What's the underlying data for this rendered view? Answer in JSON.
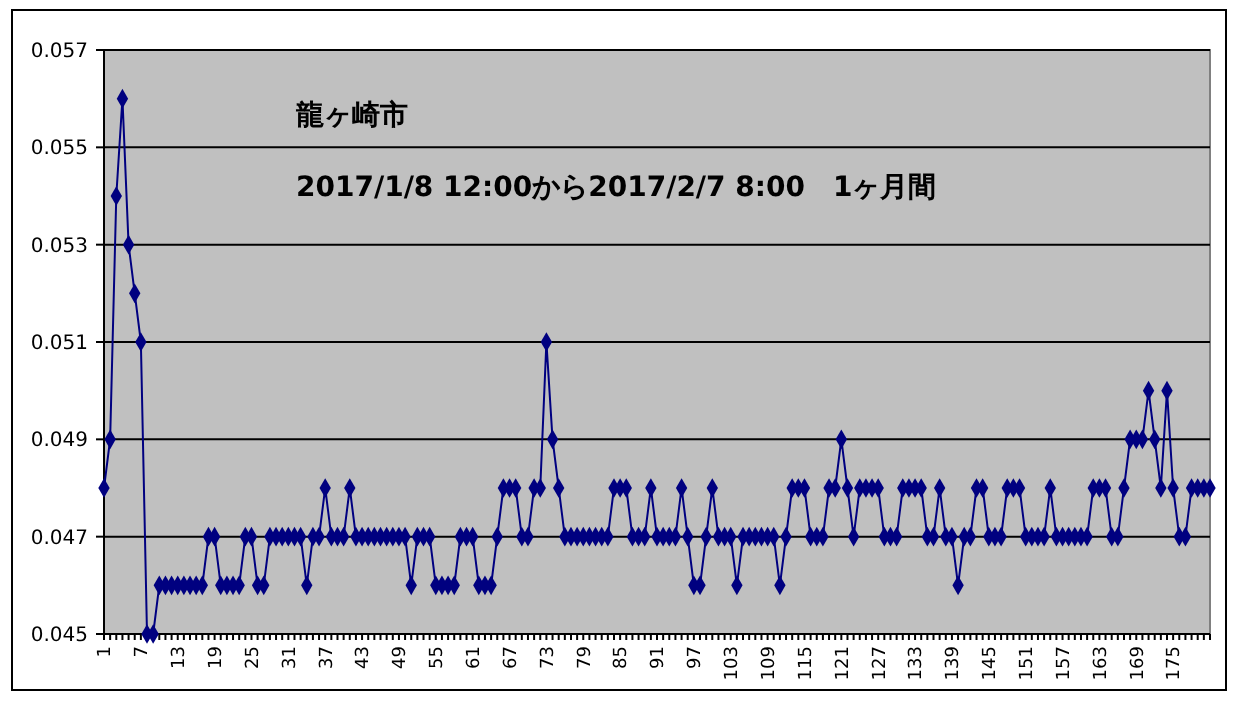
{
  "chart_data": {
    "type": "line",
    "title": "龍ヶ崎市",
    "subtitle": "2017/1/8 12:00から2017/2/7 8:00　1ヶ月間",
    "categories": [
      "1",
      null,
      null,
      null,
      null,
      null,
      "7",
      null,
      null,
      null,
      null,
      null,
      "13",
      null,
      null,
      null,
      null,
      null,
      "19",
      null,
      null,
      null,
      null,
      null,
      "25",
      null,
      null,
      null,
      null,
      null,
      "31",
      null,
      null,
      null,
      null,
      null,
      "37",
      null,
      null,
      null,
      null,
      null,
      "43",
      null,
      null,
      null,
      null,
      null,
      "49",
      null,
      null,
      null,
      null,
      null,
      "55",
      null,
      null,
      null,
      null,
      null,
      "61",
      null,
      null,
      null,
      null,
      null,
      "67",
      null,
      null,
      null,
      null,
      null,
      "73",
      null,
      null,
      null,
      null,
      null,
      "79",
      null,
      null,
      null,
      null,
      null,
      "85",
      null,
      null,
      null,
      null,
      null,
      "91",
      null,
      null,
      null,
      null,
      null,
      "97",
      null,
      null,
      null,
      null,
      null,
      "103",
      null,
      null,
      null,
      null,
      null,
      "109",
      null,
      null,
      null,
      null,
      null,
      "115",
      null,
      null,
      null,
      null,
      null,
      "121",
      null,
      null,
      null,
      null,
      null,
      "127",
      null,
      null,
      null,
      null,
      null,
      "133",
      null,
      null,
      null,
      null,
      null,
      "139",
      null,
      null,
      null,
      null,
      null,
      "145",
      null,
      null,
      null,
      null,
      null,
      "151",
      null,
      null,
      null,
      null,
      null,
      "157",
      null,
      null,
      null,
      null,
      null,
      "163",
      null,
      null,
      null,
      null,
      null,
      "169",
      null,
      null,
      null,
      null,
      null,
      "175",
      null,
      null,
      null,
      null,
      null,
      null
    ],
    "series": [
      {
        "color": "#000080",
        "values": [
          0.048,
          0.049,
          0.054,
          0.056,
          0.053,
          0.052,
          0.051,
          0.045,
          0.045,
          0.046,
          0.046,
          0.046,
          0.046,
          0.046,
          0.046,
          0.046,
          0.046,
          0.047,
          0.047,
          0.046,
          0.046,
          0.046,
          0.046,
          0.047,
          0.047,
          0.046,
          0.046,
          0.047,
          0.047,
          0.047,
          0.047,
          0.047,
          0.047,
          0.046,
          0.047,
          0.047,
          0.048,
          0.047,
          0.047,
          0.047,
          0.048,
          0.047,
          0.047,
          0.047,
          0.047,
          0.047,
          0.047,
          0.047,
          0.047,
          0.047,
          0.046,
          0.047,
          0.047,
          0.047,
          0.046,
          0.046,
          0.046,
          0.046,
          0.047,
          0.047,
          0.047,
          0.046,
          0.046,
          0.046,
          0.047,
          0.048,
          0.048,
          0.048,
          0.047,
          0.047,
          0.048,
          0.048,
          0.051,
          0.049,
          0.048,
          0.047,
          0.047,
          0.047,
          0.047,
          0.047,
          0.047,
          0.047,
          0.047,
          0.048,
          0.048,
          0.048,
          0.047,
          0.047,
          0.047,
          0.048,
          0.047,
          0.047,
          0.047,
          0.047,
          0.048,
          0.047,
          0.046,
          0.046,
          0.047,
          0.048,
          0.047,
          0.047,
          0.047,
          0.046,
          0.047,
          0.047,
          0.047,
          0.047,
          0.047,
          0.047,
          0.046,
          0.047,
          0.048,
          0.048,
          0.048,
          0.047,
          0.047,
          0.047,
          0.048,
          0.048,
          0.049,
          0.048,
          0.047,
          0.048,
          0.048,
          0.048,
          0.048,
          0.047,
          0.047,
          0.047,
          0.048,
          0.048,
          0.048,
          0.048,
          0.047,
          0.047,
          0.048,
          0.047,
          0.047,
          0.046,
          0.047,
          0.047,
          0.048,
          0.048,
          0.047,
          0.047,
          0.047,
          0.048,
          0.048,
          0.048,
          0.047,
          0.047,
          0.047,
          0.047,
          0.048,
          0.047,
          0.047,
          0.047,
          0.047,
          0.047,
          0.047,
          0.048,
          0.048,
          0.048,
          0.047,
          0.047,
          0.048,
          0.049,
          0.049,
          0.049,
          0.05,
          0.049,
          0.048,
          0.05,
          0.048,
          0.047,
          0.047,
          0.048,
          0.048,
          0.048,
          0.048
        ]
      }
    ],
    "ylim": [
      0.045,
      0.057
    ],
    "yticks": [
      0.045,
      0.047,
      0.049,
      0.051,
      0.053,
      0.055,
      0.057
    ],
    "grid": "y",
    "marker": "diamond"
  }
}
